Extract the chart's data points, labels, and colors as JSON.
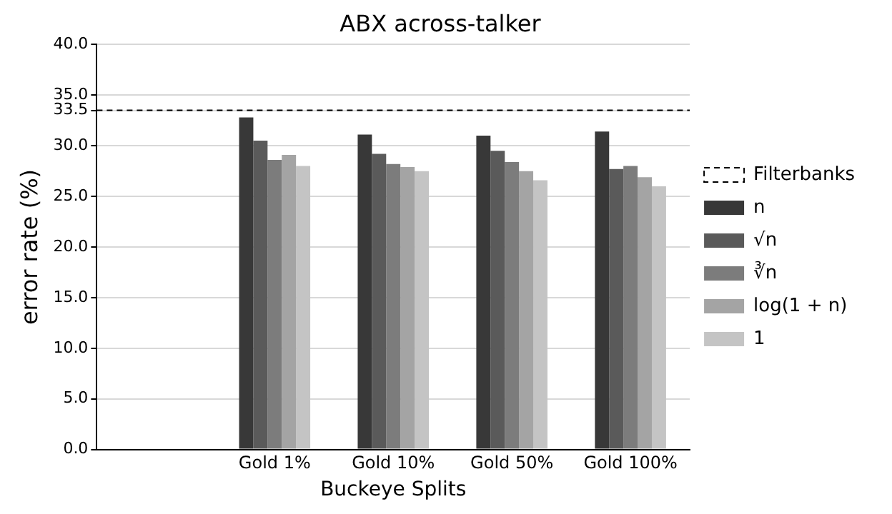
{
  "chart_data": {
    "type": "bar",
    "title": "ABX across-talker",
    "xlabel": "Buckeye Splits",
    "ylabel": "error rate (%)",
    "categories": [
      null,
      "Gold 1%",
      "Gold 10%",
      "Gold 50%",
      "Gold 100%"
    ],
    "series": [
      {
        "name": "n",
        "color": "#383838",
        "values": [
          null,
          32.8,
          31.1,
          31.0,
          31.4
        ]
      },
      {
        "name": "√n",
        "color": "#5a5a5a",
        "values": [
          null,
          30.5,
          29.2,
          29.5,
          27.7
        ]
      },
      {
        "name": "∛n",
        "color": "#7c7c7c",
        "values": [
          null,
          28.6,
          28.2,
          28.4,
          28.0
        ]
      },
      {
        "name": "log(1 + n)",
        "color": "#a4a4a4",
        "values": [
          null,
          29.1,
          27.9,
          27.5,
          26.9
        ]
      },
      {
        "name": "1",
        "color": "#c4c4c4",
        "values": [
          null,
          28.0,
          27.5,
          26.6,
          26.0
        ]
      }
    ],
    "ylim": [
      0,
      40
    ],
    "yticks": [
      {
        "value": 0,
        "label": "0.0"
      },
      {
        "value": 5,
        "label": "5.0"
      },
      {
        "value": 10,
        "label": "10.0"
      },
      {
        "value": 15,
        "label": "15.0"
      },
      {
        "value": 20,
        "label": "20.0"
      },
      {
        "value": 25,
        "label": "25.0"
      },
      {
        "value": 30,
        "label": "30.0"
      },
      {
        "value": 33.5,
        "label": "33.5"
      },
      {
        "value": 35,
        "label": "35.0"
      },
      {
        "value": 40,
        "label": "40.0"
      }
    ],
    "ref_lines": [
      {
        "axis": "y",
        "value": 33.5,
        "label": "Filterbanks",
        "color": "#000000",
        "line_style": "dashed"
      }
    ],
    "grid": "y",
    "legend": "right"
  }
}
